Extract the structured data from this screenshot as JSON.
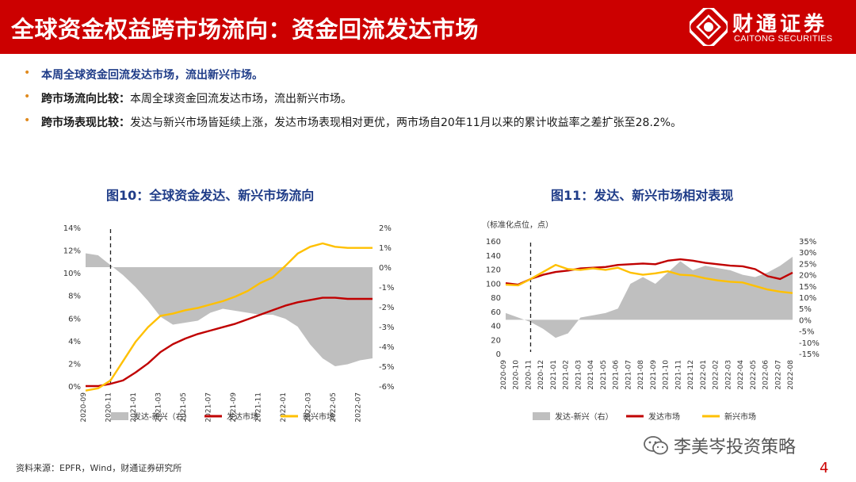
{
  "header": {
    "title": "全球资金权益跨市场流向：资金回流发达市场",
    "logo_cn": "财通证券",
    "logo_en": "CAITONG SECURITIES"
  },
  "bullets": [
    {
      "strong": "本周全球资金回流发达市场，流出新兴市场。",
      "rest": ""
    },
    {
      "strong": "跨市场流向比较：",
      "rest": "本周全球资金回流发达市场，流出新兴市场。"
    },
    {
      "strong": "跨市场表现比较：",
      "rest": "发达与新兴市场皆延续上涨，发达市场表现相对更优，两市场自20年11月以来的累计收益率之差扩张至28.2%。"
    }
  ],
  "colors": {
    "brand": "#cc0000",
    "developed": "#c00000",
    "emerging": "#ffc000",
    "diff": "#bfbfbf",
    "title_blue": "#1f3c88",
    "bullet": "#e08a1e"
  },
  "chart_data": [
    {
      "title": "图10：全球资金发达、新兴市场流向",
      "type": "line",
      "x_ticks": [
        "2020-09",
        "2020-11",
        "2021-01",
        "2021-03",
        "2021-05",
        "2021-07",
        "2021-09",
        "2021-11",
        "2022-01",
        "2022-03",
        "2022-05",
        "2022-07"
      ],
      "y_left": {
        "ylim": [
          0,
          14
        ],
        "ticks": [
          "0%",
          "2%",
          "4%",
          "6%",
          "8%",
          "10%",
          "12%",
          "14%"
        ]
      },
      "y_right": {
        "ylim": [
          -6,
          2
        ],
        "ticks": [
          "-6%",
          "-5%",
          "-4%",
          "-3%",
          "-2%",
          "-1%",
          "0%",
          "1%",
          "2%"
        ]
      },
      "event_marker": "2020-11",
      "series": [
        {
          "name": "发达-新兴（右）",
          "type": "area",
          "axis": "right",
          "x": [
            "2020-09",
            "2020-10",
            "2020-11",
            "2020-12",
            "2021-01",
            "2021-02",
            "2021-03",
            "2021-04",
            "2021-05",
            "2021-06",
            "2021-07",
            "2021-08",
            "2021-09",
            "2021-10",
            "2021-11",
            "2021-12",
            "2022-01",
            "2022-02",
            "2022-03",
            "2022-04",
            "2022-05",
            "2022-06",
            "2022-07",
            "2022-08"
          ],
          "values": [
            0.7,
            0.6,
            0.1,
            -0.4,
            -1.0,
            -1.7,
            -2.5,
            -2.9,
            -2.8,
            -2.7,
            -2.3,
            -2.1,
            -2.2,
            -2.3,
            -2.4,
            -2.4,
            -2.6,
            -3.0,
            -3.9,
            -4.6,
            -5.0,
            -4.9,
            -4.7,
            -4.6
          ]
        },
        {
          "name": "发达市场",
          "type": "line",
          "axis": "left",
          "x": [
            "2020-09",
            "2020-10",
            "2020-11",
            "2020-12",
            "2021-01",
            "2021-02",
            "2021-03",
            "2021-04",
            "2021-05",
            "2021-06",
            "2021-07",
            "2021-08",
            "2021-09",
            "2021-10",
            "2021-11",
            "2021-12",
            "2022-01",
            "2022-02",
            "2022-03",
            "2022-04",
            "2022-05",
            "2022-06",
            "2022-07",
            "2022-08"
          ],
          "values": [
            0.0,
            0.0,
            0.2,
            0.5,
            1.2,
            2.0,
            3.0,
            3.7,
            4.2,
            4.6,
            4.9,
            5.2,
            5.5,
            5.9,
            6.3,
            6.7,
            7.1,
            7.4,
            7.6,
            7.8,
            7.8,
            7.7,
            7.7,
            7.7
          ]
        },
        {
          "name": "新兴市场",
          "type": "line",
          "axis": "left",
          "x": [
            "2020-09",
            "2020-10",
            "2020-11",
            "2020-12",
            "2021-01",
            "2021-02",
            "2021-03",
            "2021-04",
            "2021-05",
            "2021-06",
            "2021-07",
            "2021-08",
            "2021-09",
            "2021-10",
            "2021-11",
            "2021-12",
            "2022-01",
            "2022-02",
            "2022-03",
            "2022-04",
            "2022-05",
            "2022-06",
            "2022-07",
            "2022-08"
          ],
          "values": [
            -0.4,
            -0.2,
            0.5,
            2.2,
            3.9,
            5.2,
            6.2,
            6.4,
            6.7,
            6.9,
            7.2,
            7.5,
            7.9,
            8.4,
            9.1,
            9.6,
            10.6,
            11.7,
            12.3,
            12.6,
            12.3,
            12.2,
            12.2,
            12.2
          ]
        }
      ]
    },
    {
      "title": "图11：发达、新兴市场相对表现",
      "type": "line",
      "subtitle": "（标准化点位，点）",
      "x_ticks": [
        "2020-09",
        "2020-10",
        "2020-11",
        "2020-12",
        "2021-01",
        "2021-02",
        "2021-03",
        "2021-04",
        "2021-05",
        "2021-06",
        "2021-07",
        "2021-08",
        "2021-09",
        "2021-10",
        "2021-11",
        "2021-12",
        "2022-01",
        "2022-02",
        "2022-03",
        "2022-04",
        "2022-05",
        "2022-06",
        "2022-07",
        "2022-08"
      ],
      "y_left": {
        "ylim": [
          0,
          160
        ],
        "ticks": [
          "0",
          "20",
          "40",
          "60",
          "80",
          "100",
          "120",
          "140",
          "160"
        ]
      },
      "y_right": {
        "ylim": [
          -15,
          35
        ],
        "ticks": [
          "-15%",
          "-10%",
          "-5%",
          "0%",
          "5%",
          "10%",
          "15%",
          "20%",
          "25%",
          "30%",
          "35%"
        ]
      },
      "event_marker": "2020-11",
      "series": [
        {
          "name": "发达-新兴（右）",
          "type": "area",
          "axis": "right",
          "x": [
            "2020-09",
            "2020-10",
            "2020-11",
            "2020-12",
            "2021-01",
            "2021-02",
            "2021-03",
            "2021-04",
            "2021-05",
            "2021-06",
            "2021-07",
            "2021-08",
            "2021-09",
            "2021-10",
            "2021-11",
            "2021-12",
            "2022-01",
            "2022-02",
            "2022-03",
            "2022-04",
            "2022-05",
            "2022-06",
            "2022-07",
            "2022-08"
          ],
          "values": [
            3,
            1,
            -1,
            -4,
            -8,
            -6,
            1,
            2,
            3,
            5,
            16,
            19,
            16,
            21,
            26,
            22,
            24,
            23,
            22,
            20,
            19,
            21,
            24,
            28
          ]
        },
        {
          "name": "发达市场",
          "type": "line",
          "axis": "left",
          "x": [
            "2020-09",
            "2020-10",
            "2020-11",
            "2020-12",
            "2021-01",
            "2021-02",
            "2021-03",
            "2021-04",
            "2021-05",
            "2021-06",
            "2021-07",
            "2021-08",
            "2021-09",
            "2021-10",
            "2021-11",
            "2021-12",
            "2022-01",
            "2022-02",
            "2022-03",
            "2022-04",
            "2022-05",
            "2022-06",
            "2022-07",
            "2022-08"
          ],
          "values": [
            100,
            98,
            106,
            112,
            116,
            118,
            121,
            122,
            123,
            126,
            127,
            128,
            127,
            132,
            134,
            132,
            129,
            127,
            125,
            124,
            120,
            110,
            106,
            115
          ]
        },
        {
          "name": "新兴市场",
          "type": "line",
          "axis": "left",
          "x": [
            "2020-09",
            "2020-10",
            "2020-11",
            "2020-12",
            "2021-01",
            "2021-02",
            "2021-03",
            "2021-04",
            "2021-05",
            "2021-06",
            "2021-07",
            "2021-08",
            "2021-09",
            "2021-10",
            "2021-11",
            "2021-12",
            "2022-01",
            "2022-02",
            "2022-03",
            "2022-04",
            "2022-05",
            "2022-06",
            "2022-07",
            "2022-08"
          ],
          "values": [
            98,
            97,
            106,
            116,
            126,
            120,
            119,
            121,
            119,
            122,
            115,
            112,
            114,
            117,
            112,
            111,
            107,
            104,
            102,
            101,
            96,
            91,
            88,
            86
          ]
        }
      ]
    }
  ],
  "source": "资料来源：EPFR，Wind，财通证券研究所",
  "watermark": "李美岑投资策略",
  "page_number": "4"
}
